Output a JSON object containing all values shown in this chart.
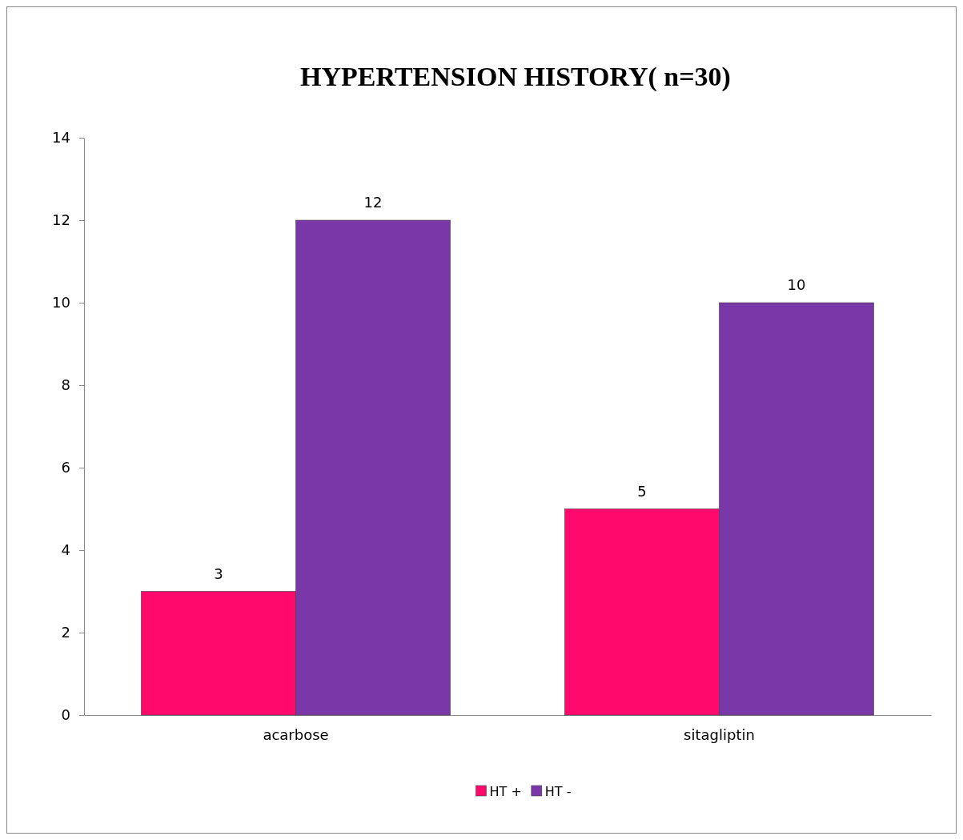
{
  "chart_data": {
    "type": "bar",
    "title": "HYPERTENSION HISTORY( n=30)",
    "categories": [
      "acarbose",
      "sitagliptin"
    ],
    "series": [
      {
        "name": "HT +",
        "color": "#ff0a6c",
        "values": [
          3,
          5
        ]
      },
      {
        "name": "HT -",
        "color": "#7a37a8",
        "values": [
          12,
          10
        ]
      }
    ],
    "ylim": [
      0,
      14
    ],
    "yticks": [
      0,
      2,
      4,
      6,
      8,
      10,
      12,
      14
    ],
    "grid": false,
    "legend": "bottom",
    "data_labels": true
  }
}
